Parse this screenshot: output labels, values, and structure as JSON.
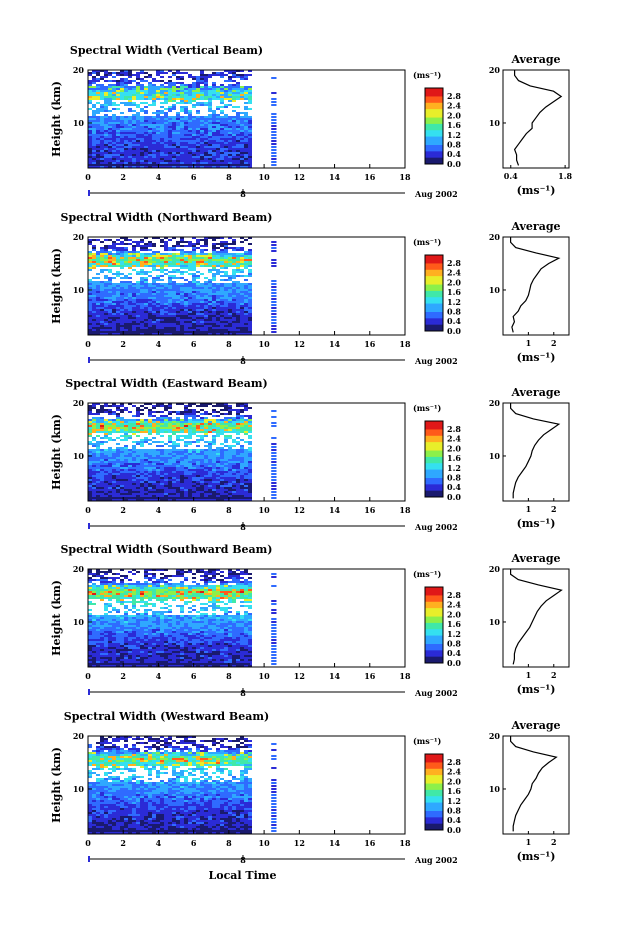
{
  "x_axis": {
    "ticks": [
      "0",
      "2",
      "4",
      "6",
      "8",
      "10",
      "12",
      "14",
      "16",
      "18"
    ],
    "date_tick": "8",
    "month_label": "Aug 2002",
    "label": "Local Time"
  },
  "y_axis": {
    "label": "Height (km)",
    "ticks": [
      "20",
      "10"
    ]
  },
  "colorbar": {
    "unit": "(ms⁻¹)",
    "ticks": [
      "2.8",
      "2.4",
      "2.0",
      "1.6",
      "1.2",
      "0.8",
      "0.4",
      "0.0"
    ]
  },
  "panels": [
    {
      "title": "Spectral Width (Vertical Beam)",
      "avg_title": "Average",
      "avg_xticks": [
        "0.4",
        "1.8"
      ],
      "avg_xlabel": "(ms⁻¹)"
    },
    {
      "title": "Spectral Width (Northward Beam)",
      "avg_title": "Average",
      "avg_xticks": [
        "1",
        "2"
      ],
      "avg_xlabel": "(ms⁻¹)"
    },
    {
      "title": "Spectral Width (Eastward Beam)",
      "avg_title": "Average",
      "avg_xticks": [
        "1",
        "2"
      ],
      "avg_xlabel": "(ms⁻¹)"
    },
    {
      "title": "Spectral Width (Southward Beam)",
      "avg_title": "Average",
      "avg_xticks": [
        "1",
        "2"
      ],
      "avg_xlabel": "(ms⁻¹)"
    },
    {
      "title": "Spectral Width (Westward Beam)",
      "avg_title": "Average",
      "avg_xticks": [
        "1",
        "2"
      ],
      "avg_xlabel": "(ms⁻¹)"
    }
  ],
  "colors": {
    "colormap": [
      "#1a1a6e",
      "#2b2bd6",
      "#2f6bff",
      "#2fa8ff",
      "#35e0f0",
      "#40e8a8",
      "#8cf04a",
      "#e8ee2a",
      "#ffb020",
      "#ff5a1a",
      "#e01818"
    ]
  },
  "chart_data": [
    {
      "type": "heatmap",
      "title": "Spectral Width (Vertical Beam)",
      "xlabel": "",
      "ylabel": "Height (km)",
      "xlim": [
        0,
        18
      ],
      "ylim": [
        1.5,
        20
      ],
      "clim": [
        0,
        3.0
      ],
      "color_unit": "(ms⁻¹)",
      "x_coverage_hours": [
        [
          0,
          9.2
        ],
        [
          10.4,
          10.7
        ]
      ],
      "profile_height_km": [
        2,
        3,
        4,
        5,
        6,
        7,
        8,
        9,
        10,
        11,
        12,
        13,
        14,
        15,
        16,
        17,
        18,
        19,
        20
      ],
      "profile_width_ms": [
        0.6,
        0.55,
        0.55,
        0.5,
        0.6,
        0.7,
        0.8,
        0.95,
        0.95,
        1.05,
        1.15,
        1.3,
        1.5,
        1.7,
        1.5,
        0.9,
        0.6,
        0.5,
        0.5
      ],
      "avg_title": "Average",
      "avg_xlabel": "(ms⁻¹)",
      "avg_xlim": [
        0.2,
        1.9
      ]
    },
    {
      "type": "heatmap",
      "title": "Spectral Width (Northward Beam)",
      "xlabel": "",
      "ylabel": "Height (km)",
      "xlim": [
        0,
        18
      ],
      "ylim": [
        1.5,
        20
      ],
      "clim": [
        0,
        3.0
      ],
      "color_unit": "(ms⁻¹)",
      "x_coverage_hours": [
        [
          0,
          9.2
        ],
        [
          10.4,
          10.7
        ]
      ],
      "profile_height_km": [
        2,
        3,
        4,
        5,
        6,
        7,
        8,
        9,
        10,
        11,
        12,
        13,
        14,
        15,
        16,
        17,
        18,
        19,
        20
      ],
      "profile_width_ms": [
        0.4,
        0.35,
        0.45,
        0.4,
        0.6,
        0.7,
        0.9,
        1.0,
        1.05,
        1.1,
        1.2,
        1.35,
        1.5,
        1.8,
        2.2,
        1.3,
        0.5,
        0.3,
        0.3
      ],
      "avg_title": "Average",
      "avg_xlabel": "(ms⁻¹)",
      "avg_xlim": [
        0,
        2.6
      ]
    },
    {
      "type": "heatmap",
      "title": "Spectral Width (Eastward Beam)",
      "xlabel": "",
      "ylabel": "Height (km)",
      "xlim": [
        0,
        18
      ],
      "ylim": [
        1.5,
        20
      ],
      "clim": [
        0,
        3.0
      ],
      "color_unit": "(ms⁻¹)",
      "x_coverage_hours": [
        [
          0,
          9.2
        ],
        [
          10.4,
          10.7
        ]
      ],
      "profile_height_km": [
        2,
        3,
        4,
        5,
        6,
        7,
        8,
        9,
        10,
        11,
        12,
        13,
        14,
        15,
        16,
        17,
        18,
        19,
        20
      ],
      "profile_width_ms": [
        0.4,
        0.4,
        0.45,
        0.5,
        0.6,
        0.75,
        0.9,
        1.0,
        1.1,
        1.15,
        1.25,
        1.4,
        1.6,
        1.9,
        2.2,
        1.2,
        0.5,
        0.3,
        0.3
      ],
      "avg_title": "Average",
      "avg_xlabel": "(ms⁻¹)",
      "avg_xlim": [
        0,
        2.6
      ]
    },
    {
      "type": "heatmap",
      "title": "Spectral Width (Southward Beam)",
      "xlabel": "",
      "ylabel": "Height (km)",
      "xlim": [
        0,
        18
      ],
      "ylim": [
        1.5,
        20
      ],
      "clim": [
        0,
        3.0
      ],
      "color_unit": "(ms⁻¹)",
      "x_coverage_hours": [
        [
          0,
          9.2
        ],
        [
          10.4,
          10.7
        ]
      ],
      "profile_height_km": [
        2,
        3,
        4,
        5,
        6,
        7,
        8,
        9,
        10,
        11,
        12,
        13,
        14,
        15,
        16,
        17,
        18,
        19,
        20
      ],
      "profile_width_ms": [
        0.4,
        0.45,
        0.45,
        0.5,
        0.6,
        0.75,
        0.9,
        1.05,
        1.15,
        1.25,
        1.35,
        1.5,
        1.7,
        2.0,
        2.3,
        1.4,
        0.6,
        0.3,
        0.3
      ],
      "avg_title": "Average",
      "avg_xlabel": "(ms⁻¹)",
      "avg_xlim": [
        0,
        2.6
      ]
    },
    {
      "type": "heatmap",
      "title": "Spectral Width (Westward Beam)",
      "xlabel": "Local Time",
      "ylabel": "Height (km)",
      "xlim": [
        0,
        18
      ],
      "ylim": [
        1.5,
        20
      ],
      "clim": [
        0,
        3.0
      ],
      "color_unit": "(ms⁻¹)",
      "x_coverage_hours": [
        [
          0,
          9.2
        ],
        [
          10.4,
          10.7
        ]
      ],
      "profile_height_km": [
        2,
        3,
        4,
        5,
        6,
        7,
        8,
        9,
        10,
        11,
        12,
        13,
        14,
        15,
        16,
        17,
        18,
        19,
        20
      ],
      "profile_width_ms": [
        0.4,
        0.4,
        0.45,
        0.5,
        0.6,
        0.7,
        0.85,
        1.0,
        1.1,
        1.15,
        1.3,
        1.4,
        1.55,
        1.8,
        2.1,
        1.2,
        0.5,
        0.3,
        0.3
      ],
      "avg_title": "Average",
      "avg_xlabel": "(ms⁻¹)",
      "avg_xlim": [
        0,
        2.6
      ]
    }
  ]
}
